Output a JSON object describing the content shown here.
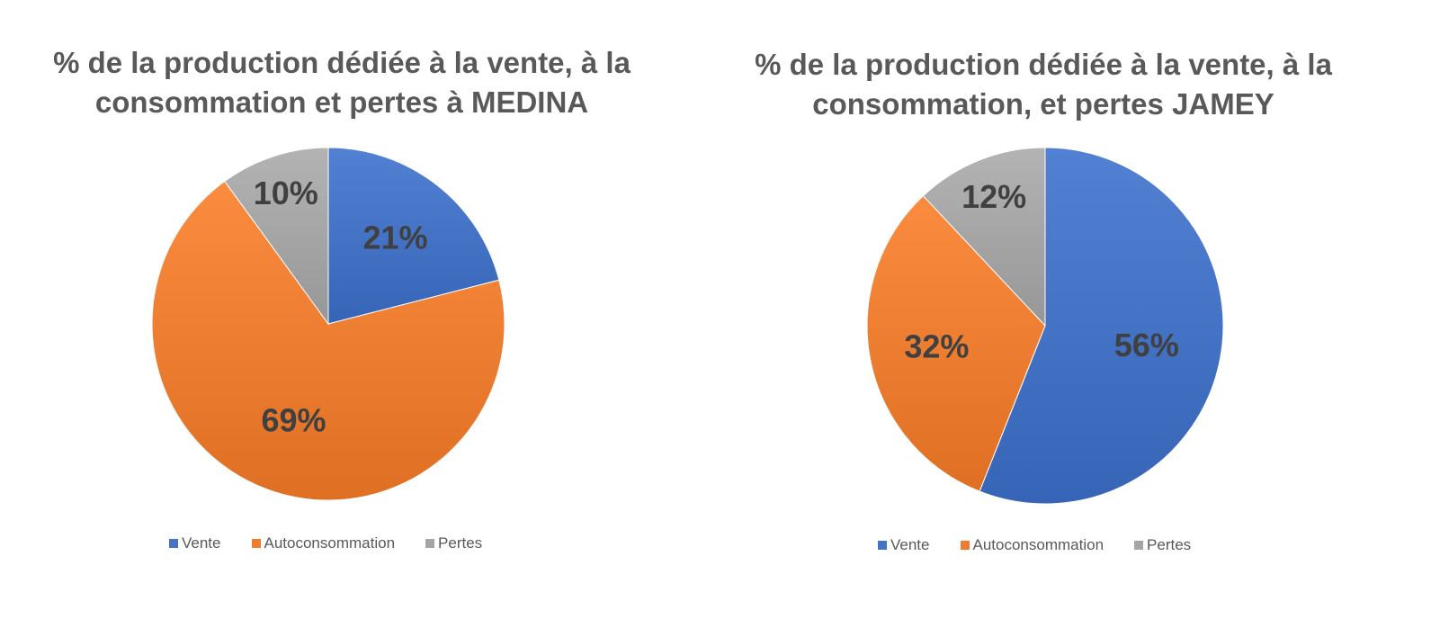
{
  "chart_data": [
    {
      "type": "pie",
      "title": "% de la production dédiée à la vente, à la consommation et pertes à MEDINA",
      "title_lines": [
        "% de la production dédiée à la vente, à la",
        "consommation et pertes à MEDINA"
      ],
      "categories": [
        "Vente",
        "Autoconsommation",
        "Pertes"
      ],
      "values": [
        21,
        69,
        10
      ],
      "labels": [
        "21%",
        "69%",
        "10%"
      ],
      "colors": [
        "#4472C4",
        "#ED7D31",
        "#A5A5A5"
      ],
      "legend_position": "bottom"
    },
    {
      "type": "pie",
      "title": "% de la production dédiée à la vente, à la consommation, et pertes JAMEY",
      "title_lines": [
        "% de la production dédiée à la vente, à la",
        "consommation, et pertes JAMEY"
      ],
      "categories": [
        "Vente",
        "Autoconsommation",
        "Pertes"
      ],
      "values": [
        56,
        32,
        12
      ],
      "labels": [
        "56%",
        "32%",
        "12%"
      ],
      "colors": [
        "#4472C4",
        "#ED7D31",
        "#A5A5A5"
      ],
      "legend_position": "bottom"
    }
  ]
}
